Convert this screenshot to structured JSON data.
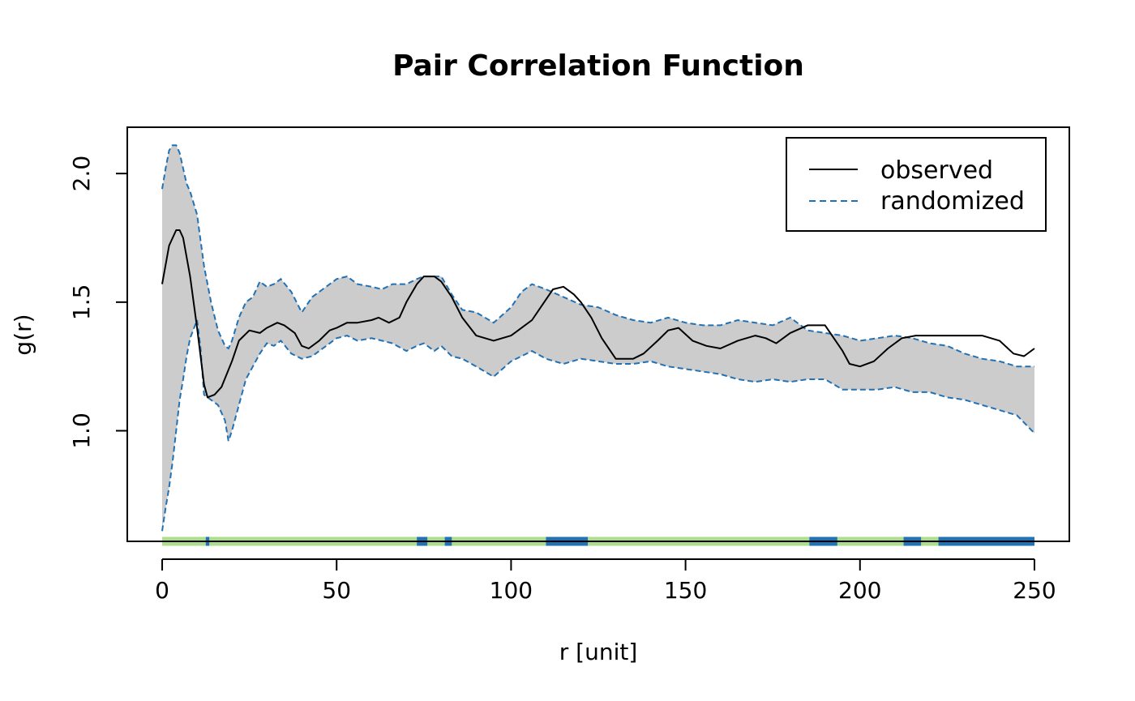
{
  "chart_data": {
    "type": "line",
    "title": "Pair Correlation Function",
    "xlabel": "r [unit]",
    "ylabel": "g(r)",
    "xlim": [
      -10,
      260
    ],
    "ylim": [
      0.57,
      2.18
    ],
    "xticks": [
      0,
      50,
      100,
      150,
      200,
      250
    ],
    "xtick_labels": [
      "0",
      "50",
      "100",
      "150",
      "200",
      "250"
    ],
    "yticks": [
      1.0,
      1.5,
      2.0
    ],
    "ytick_labels": [
      "1.0",
      "1.5",
      "2.0"
    ],
    "grid": false,
    "legend_position": "top-right",
    "colors": {
      "observed": "#000000",
      "envelope_line": "#2171b5",
      "envelope_fill": "#cccccc",
      "rug_ok": "#addd8e",
      "rug_out": "#2171b5"
    },
    "series": [
      {
        "name": "observed",
        "style": "solid",
        "x": [
          0,
          2,
          4,
          5,
          6,
          8,
          10,
          12,
          13,
          15,
          17,
          20,
          22,
          25,
          28,
          30,
          33,
          35,
          38,
          40,
          42,
          45,
          48,
          50,
          53,
          56,
          60,
          62,
          65,
          68,
          70,
          73,
          75,
          78,
          80,
          83,
          86,
          90,
          95,
          100,
          103,
          106,
          110,
          112,
          115,
          118,
          120,
          123,
          126,
          130,
          135,
          138,
          142,
          145,
          148,
          152,
          156,
          160,
          165,
          170,
          173,
          176,
          180,
          185,
          190,
          195,
          197,
          200,
          204,
          208,
          212,
          216,
          220,
          226,
          230,
          235,
          240,
          244,
          247,
          250
        ],
        "y": [
          1.57,
          1.72,
          1.78,
          1.78,
          1.75,
          1.6,
          1.4,
          1.18,
          1.13,
          1.14,
          1.17,
          1.27,
          1.35,
          1.39,
          1.38,
          1.4,
          1.42,
          1.41,
          1.38,
          1.33,
          1.32,
          1.35,
          1.39,
          1.4,
          1.42,
          1.42,
          1.43,
          1.44,
          1.42,
          1.44,
          1.5,
          1.57,
          1.6,
          1.6,
          1.58,
          1.52,
          1.44,
          1.37,
          1.35,
          1.37,
          1.4,
          1.43,
          1.51,
          1.55,
          1.56,
          1.53,
          1.5,
          1.44,
          1.36,
          1.28,
          1.28,
          1.3,
          1.35,
          1.39,
          1.4,
          1.35,
          1.33,
          1.32,
          1.35,
          1.37,
          1.36,
          1.34,
          1.38,
          1.41,
          1.41,
          1.31,
          1.26,
          1.25,
          1.27,
          1.32,
          1.36,
          1.37,
          1.37,
          1.37,
          1.37,
          1.37,
          1.35,
          1.3,
          1.29,
          1.32
        ]
      },
      {
        "name": "randomized",
        "style": "dashed",
        "x": [
          0,
          1,
          2,
          3,
          4,
          5,
          6,
          7,
          8,
          10,
          11,
          12,
          14,
          16,
          18,
          19,
          20,
          22,
          24,
          26,
          28,
          30,
          32,
          34,
          37,
          40,
          43,
          46,
          50,
          53,
          56,
          60,
          63,
          66,
          70,
          73,
          75,
          78,
          80,
          83,
          86,
          90,
          95,
          100,
          103,
          106,
          110,
          115,
          120,
          125,
          130,
          135,
          140,
          145,
          150,
          155,
          160,
          165,
          170,
          175,
          180,
          185,
          190,
          195,
          200,
          205,
          210,
          215,
          220,
          225,
          230,
          235,
          240,
          245,
          250
        ],
        "y_upper": [
          1.94,
          2.02,
          2.09,
          2.11,
          2.11,
          2.08,
          2.02,
          1.96,
          1.93,
          1.84,
          1.74,
          1.64,
          1.5,
          1.39,
          1.33,
          1.32,
          1.35,
          1.44,
          1.5,
          1.52,
          1.58,
          1.56,
          1.57,
          1.59,
          1.54,
          1.46,
          1.52,
          1.55,
          1.59,
          1.6,
          1.57,
          1.56,
          1.55,
          1.57,
          1.57,
          1.59,
          1.6,
          1.6,
          1.6,
          1.53,
          1.47,
          1.46,
          1.42,
          1.48,
          1.54,
          1.57,
          1.55,
          1.52,
          1.49,
          1.48,
          1.45,
          1.43,
          1.42,
          1.44,
          1.42,
          1.41,
          1.41,
          1.43,
          1.42,
          1.41,
          1.44,
          1.39,
          1.38,
          1.37,
          1.35,
          1.36,
          1.37,
          1.36,
          1.34,
          1.33,
          1.3,
          1.28,
          1.27,
          1.25,
          1.25
        ],
        "y_lower": [
          0.61,
          0.7,
          0.78,
          0.88,
          1.0,
          1.12,
          1.2,
          1.29,
          1.36,
          1.43,
          1.32,
          1.14,
          1.12,
          1.1,
          1.04,
          0.96,
          1.0,
          1.1,
          1.2,
          1.25,
          1.3,
          1.34,
          1.33,
          1.35,
          1.3,
          1.28,
          1.29,
          1.32,
          1.36,
          1.37,
          1.35,
          1.36,
          1.35,
          1.34,
          1.31,
          1.33,
          1.34,
          1.31,
          1.33,
          1.29,
          1.28,
          1.25,
          1.21,
          1.27,
          1.29,
          1.31,
          1.28,
          1.26,
          1.28,
          1.27,
          1.26,
          1.26,
          1.27,
          1.25,
          1.24,
          1.23,
          1.22,
          1.2,
          1.19,
          1.2,
          1.19,
          1.2,
          1.2,
          1.16,
          1.16,
          1.16,
          1.17,
          1.15,
          1.15,
          1.13,
          1.12,
          1.1,
          1.08,
          1.06,
          0.99
        ]
      }
    ],
    "rug": {
      "y": 0.57,
      "x_range": [
        0,
        250
      ],
      "outside_intervals": [
        [
          12.5,
          13.5
        ],
        [
          73,
          76
        ],
        [
          81,
          83
        ],
        [
          110,
          122
        ],
        [
          185.5,
          193.5
        ],
        [
          212.5,
          217.5
        ],
        [
          222.5,
          250
        ]
      ]
    },
    "legend": {
      "entries": [
        {
          "label": "observed",
          "style": "solid"
        },
        {
          "label": "randomized",
          "style": "dashed"
        }
      ]
    }
  }
}
